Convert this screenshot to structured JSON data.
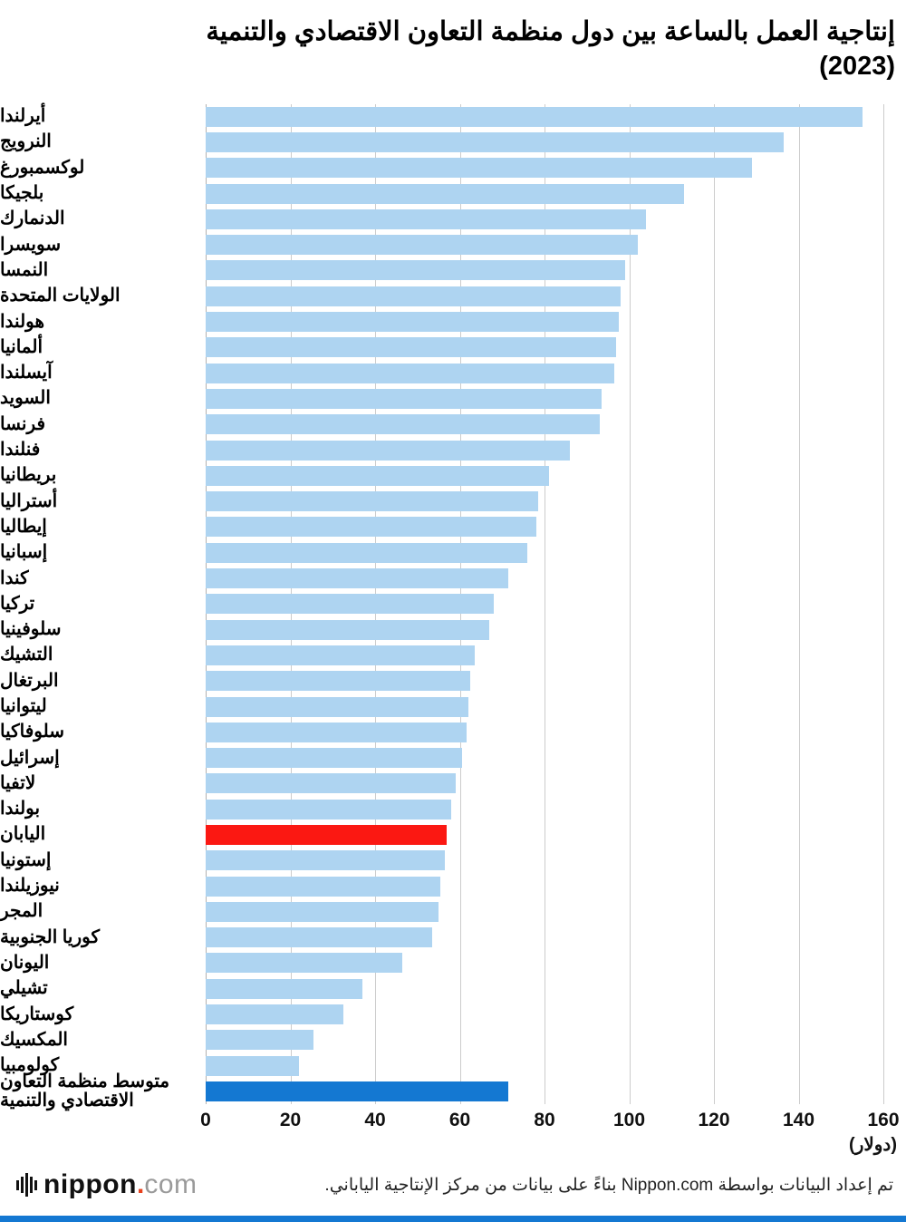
{
  "title": {
    "line1": "إنتاجية العمل بالساعة بين دول منظمة التعاون الاقتصادي والتنمية",
    "line2": "(2023)"
  },
  "chart_data": {
    "type": "bar",
    "orientation": "horizontal",
    "title": "إنتاجية العمل بالساعة بين دول منظمة التعاون الاقتصادي والتنمية (2023)",
    "xlabel": "(دولار)",
    "xlim": [
      0,
      160
    ],
    "xticks": [
      0,
      20,
      40,
      60,
      80,
      100,
      120,
      140,
      160
    ],
    "grid": true,
    "legend": "none",
    "colors": {
      "default": "#aed4f1",
      "japan": "#fb1812",
      "oecd": "#1478d2"
    },
    "items": [
      {
        "label": "أيرلندا",
        "value": 155,
        "color": "default"
      },
      {
        "label": "النرويج",
        "value": 136.5,
        "color": "default"
      },
      {
        "label": "لوكسمبورغ",
        "value": 129,
        "color": "default"
      },
      {
        "label": "بلجيكا",
        "value": 113,
        "color": "default"
      },
      {
        "label": "الدنمارك",
        "value": 104,
        "color": "default"
      },
      {
        "label": "سويسرا",
        "value": 102,
        "color": "default"
      },
      {
        "label": "النمسا",
        "value": 99,
        "color": "default"
      },
      {
        "label": "الولايات المتحدة",
        "value": 98,
        "color": "default"
      },
      {
        "label": "هولندا",
        "value": 97.5,
        "color": "default"
      },
      {
        "label": "ألمانيا",
        "value": 97,
        "color": "default"
      },
      {
        "label": "آيسلندا",
        "value": 96.5,
        "color": "default"
      },
      {
        "label": "السويد",
        "value": 93.5,
        "color": "default"
      },
      {
        "label": "فرنسا",
        "value": 93,
        "color": "default"
      },
      {
        "label": "فنلندا",
        "value": 86,
        "color": "default"
      },
      {
        "label": "بريطانيا",
        "value": 81,
        "color": "default"
      },
      {
        "label": "أستراليا",
        "value": 78.5,
        "color": "default"
      },
      {
        "label": "إيطاليا",
        "value": 78,
        "color": "default"
      },
      {
        "label": "إسبانيا",
        "value": 76,
        "color": "default"
      },
      {
        "label": "كندا",
        "value": 71.5,
        "color": "default"
      },
      {
        "label": "تركيا",
        "value": 68,
        "color": "default"
      },
      {
        "label": "سلوفينيا",
        "value": 67,
        "color": "default"
      },
      {
        "label": "التشيك",
        "value": 63.5,
        "color": "default"
      },
      {
        "label": "البرتغال",
        "value": 62.5,
        "color": "default"
      },
      {
        "label": "ليتوانيا",
        "value": 62,
        "color": "default"
      },
      {
        "label": "سلوفاكيا",
        "value": 61.5,
        "color": "default"
      },
      {
        "label": "إسرائيل",
        "value": 60.5,
        "color": "default"
      },
      {
        "label": "لاتفيا",
        "value": 59,
        "color": "default"
      },
      {
        "label": "بولندا",
        "value": 58,
        "color": "default"
      },
      {
        "label": "اليابان",
        "value": 57,
        "color": "japan",
        "key": "japan"
      },
      {
        "label": "إستونيا",
        "value": 56.5,
        "color": "default"
      },
      {
        "label": "نيوزيلندا",
        "value": 55.5,
        "color": "default"
      },
      {
        "label": "المجر",
        "value": 55,
        "color": "default"
      },
      {
        "label": "كوريا الجنوبية",
        "value": 53.5,
        "color": "default"
      },
      {
        "label": "اليونان",
        "value": 46.5,
        "color": "default"
      },
      {
        "label": "تشيلي",
        "value": 37,
        "color": "default"
      },
      {
        "label": "كوستاريكا",
        "value": 32.5,
        "color": "default"
      },
      {
        "label": "المكسيك",
        "value": 25.5,
        "color": "default"
      },
      {
        "label": "كولومبيا",
        "value": 22,
        "color": "default"
      },
      {
        "label": "متوسط منظمة التعاون الاقتصادي والتنمية",
        "value": 71.5,
        "color": "oecd",
        "key": "oecd-average"
      }
    ]
  },
  "footer": {
    "attribution": "تم إعداد البيانات بواسطة Nippon.com بناءً على بيانات من مركز الإنتاجية الياباني.",
    "logo": {
      "icon": "soundwave-bars-icon",
      "name": "nippon",
      "dot": ".",
      "tld": "com"
    }
  },
  "accent_strip_color": "#1478d2"
}
